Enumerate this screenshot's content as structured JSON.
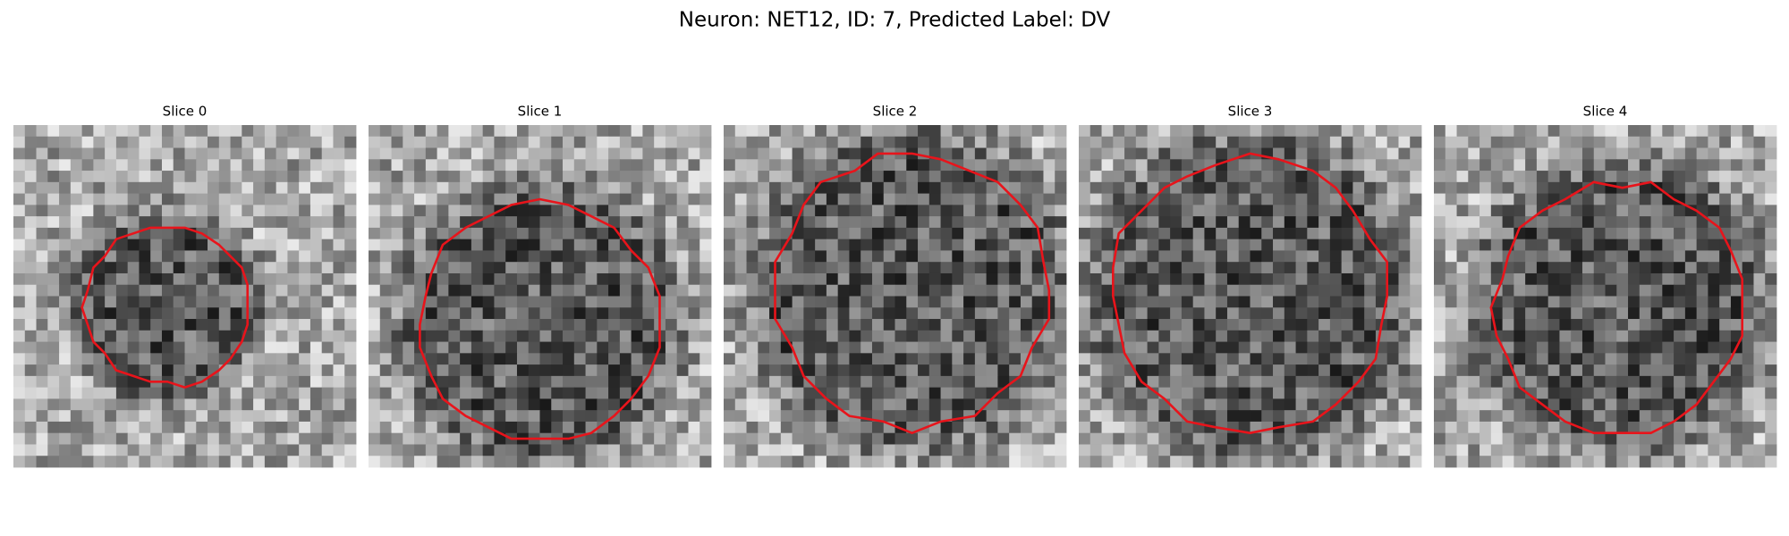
{
  "title": "Neuron: NET12, ID: 7, Predicted Label: DV",
  "panels": [
    {
      "title": "Slice 0"
    },
    {
      "title": "Slice 1"
    },
    {
      "title": "Slice 2"
    },
    {
      "title": "Slice 3"
    },
    {
      "title": "Slice 4"
    }
  ]
}
